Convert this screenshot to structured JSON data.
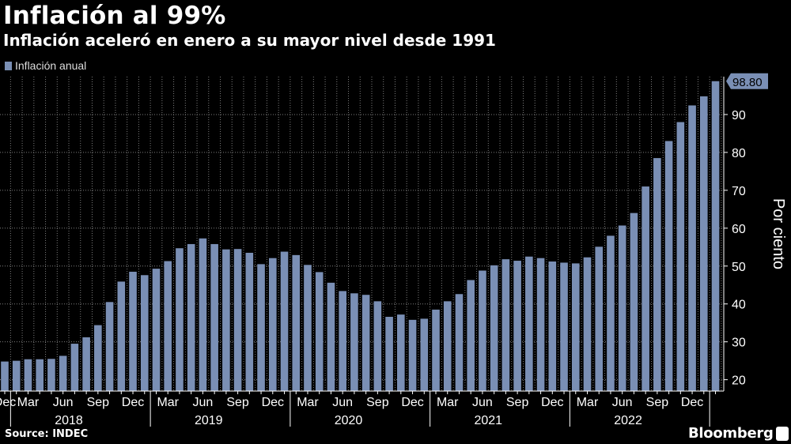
{
  "header": {
    "title": "Inflación al 99%",
    "subtitle": "Inflación aceleró en enero a su mayor nivel desde 1991"
  },
  "footer": {
    "source": "Source: INDEC",
    "brand": "Bloomberg",
    "brand_icon": "bloomberg-terminal-icon"
  },
  "colors": {
    "background": "#000000",
    "bar": "#7a8fb5",
    "grid": "#7d7d7d",
    "text": "#ffffff",
    "value_label_bg": "#7a8fb5"
  },
  "chart_data": {
    "type": "bar",
    "title": "Inflación al 99%",
    "subtitle": "Inflación aceleró en enero a su mayor nivel desde 1991",
    "ylabel": "Por ciento",
    "xlabel": "",
    "ylim": [
      17,
      100
    ],
    "yticks": [
      20,
      30,
      40,
      50,
      60,
      70,
      80,
      90
    ],
    "grid": true,
    "legend": "top-left",
    "last_value_label": "98.80",
    "series": [
      {
        "name": "Inflación anual",
        "categories": [
          "2017-12",
          "2018-01",
          "2018-02",
          "2018-03",
          "2018-04",
          "2018-05",
          "2018-06",
          "2018-07",
          "2018-08",
          "2018-09",
          "2018-10",
          "2018-11",
          "2018-12",
          "2019-01",
          "2019-02",
          "2019-03",
          "2019-04",
          "2019-05",
          "2019-06",
          "2019-07",
          "2019-08",
          "2019-09",
          "2019-10",
          "2019-11",
          "2019-12",
          "2020-01",
          "2020-02",
          "2020-03",
          "2020-04",
          "2020-05",
          "2020-06",
          "2020-07",
          "2020-08",
          "2020-09",
          "2020-10",
          "2020-11",
          "2020-12",
          "2021-01",
          "2021-02",
          "2021-03",
          "2021-04",
          "2021-05",
          "2021-06",
          "2021-07",
          "2021-08",
          "2021-09",
          "2021-10",
          "2021-11",
          "2021-12",
          "2022-01",
          "2022-02",
          "2022-03",
          "2022-04",
          "2022-05",
          "2022-06",
          "2022-07",
          "2022-08",
          "2022-09",
          "2022-10",
          "2022-11",
          "2022-12",
          "2023-01"
        ],
        "values": [
          24.8,
          25.0,
          25.4,
          25.4,
          25.5,
          26.3,
          29.5,
          31.2,
          34.4,
          40.5,
          45.9,
          48.5,
          47.6,
          49.3,
          51.3,
          54.7,
          55.8,
          57.3,
          55.8,
          54.4,
          54.5,
          53.5,
          50.5,
          52.1,
          53.8,
          52.9,
          50.3,
          48.4,
          45.6,
          43.4,
          42.8,
          42.4,
          40.7,
          36.6,
          37.2,
          35.8,
          36.1,
          38.5,
          40.7,
          42.6,
          46.3,
          48.8,
          50.2,
          51.8,
          51.4,
          52.5,
          52.1,
          51.2,
          50.9,
          50.7,
          52.3,
          55.1,
          58.0,
          60.7,
          64.0,
          71.0,
          78.5,
          83.0,
          88.0,
          92.4,
          94.8,
          98.8
        ]
      }
    ],
    "x_month_labels": [
      {
        "index": 0,
        "label": "Dec"
      },
      {
        "index": 2,
        "label": "Mar"
      },
      {
        "index": 5,
        "label": "Jun"
      },
      {
        "index": 8,
        "label": "Sep"
      },
      {
        "index": 11,
        "label": "Dec"
      },
      {
        "index": 14,
        "label": "Mar"
      },
      {
        "index": 17,
        "label": "Jun"
      },
      {
        "index": 20,
        "label": "Sep"
      },
      {
        "index": 23,
        "label": "Dec"
      },
      {
        "index": 26,
        "label": "Mar"
      },
      {
        "index": 29,
        "label": "Jun"
      },
      {
        "index": 32,
        "label": "Sep"
      },
      {
        "index": 35,
        "label": "Dec"
      },
      {
        "index": 38,
        "label": "Mar"
      },
      {
        "index": 41,
        "label": "Jun"
      },
      {
        "index": 44,
        "label": "Sep"
      },
      {
        "index": 47,
        "label": "Dec"
      },
      {
        "index": 50,
        "label": "Mar"
      },
      {
        "index": 53,
        "label": "Jun"
      },
      {
        "index": 56,
        "label": "Sep"
      },
      {
        "index": 59,
        "label": "Dec"
      }
    ],
    "x_year_labels": [
      {
        "index": 6,
        "label": "2018"
      },
      {
        "index": 18,
        "label": "2019"
      },
      {
        "index": 30,
        "label": "2020"
      },
      {
        "index": 42,
        "label": "2021"
      },
      {
        "index": 54,
        "label": "2022"
      }
    ]
  }
}
